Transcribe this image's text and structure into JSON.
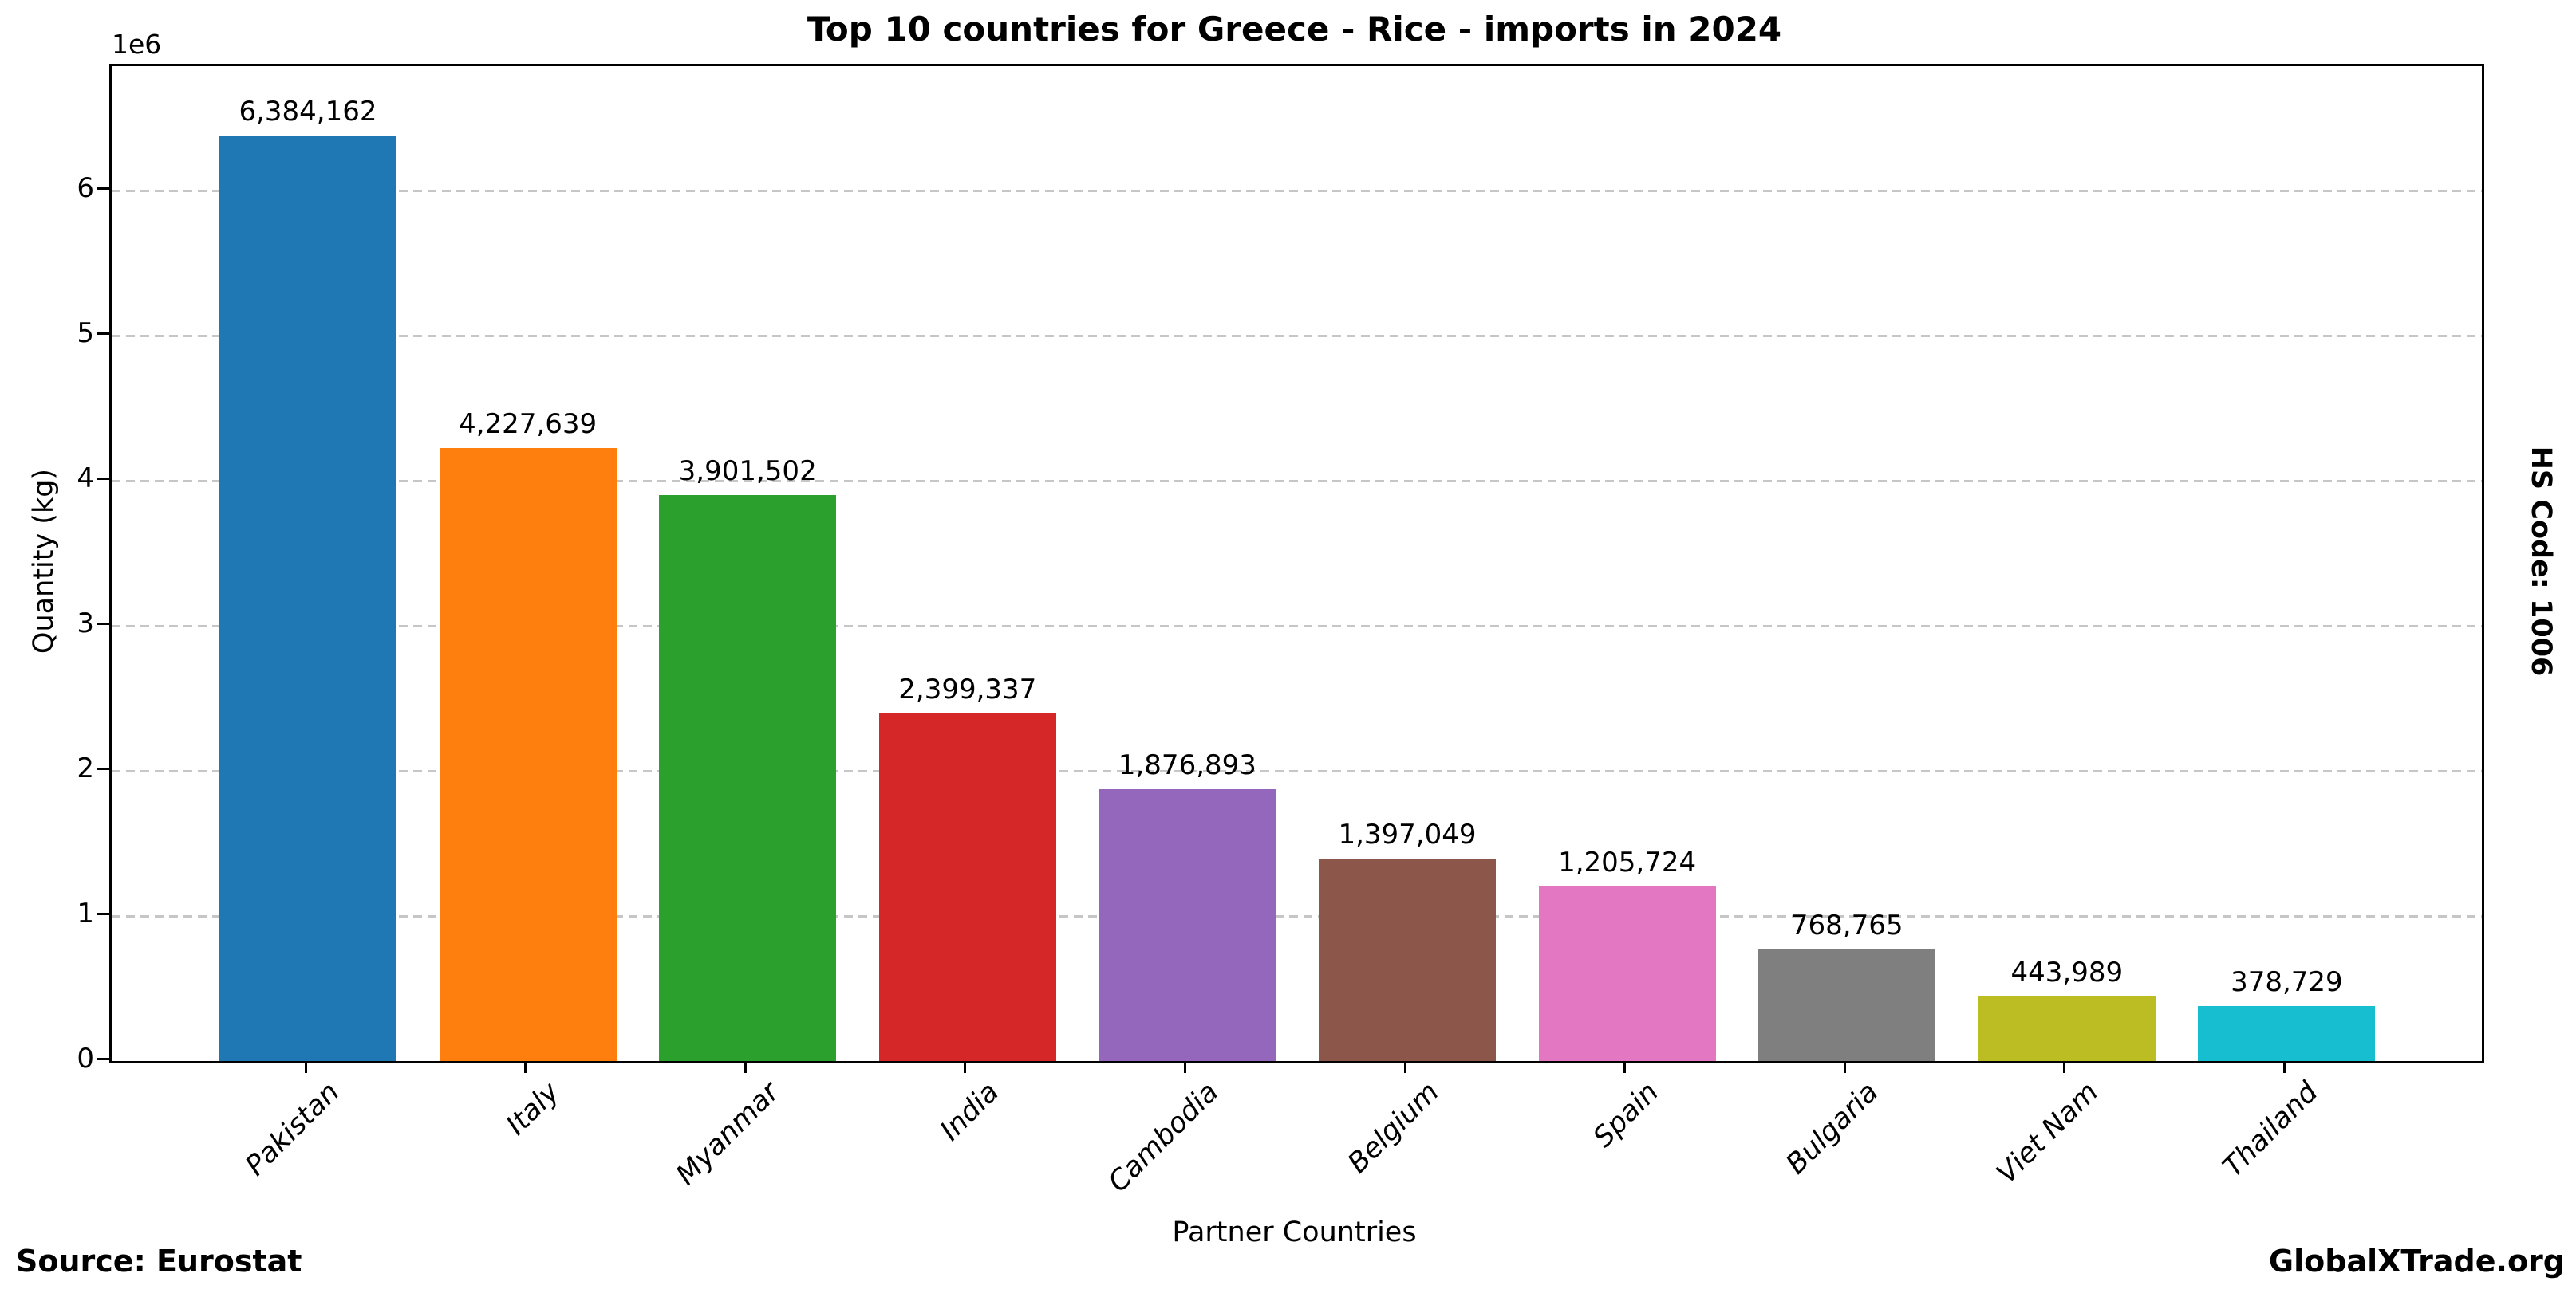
{
  "chart_data": {
    "type": "bar",
    "title": "Top 10 countries for Greece - Rice - imports in 2024",
    "xlabel": "Partner Countries",
    "ylabel": "Quantity (kg)",
    "y_offset_text": "1e6",
    "categories": [
      "Pakistan",
      "Italy",
      "Myanmar",
      "India",
      "Cambodia",
      "Belgium",
      "Spain",
      "Bulgaria",
      "Viet Nam",
      "Thailand"
    ],
    "values": [
      6384162,
      4227639,
      3901502,
      2399337,
      1876893,
      1397049,
      1205724,
      768765,
      443989,
      378729
    ],
    "value_labels": [
      "6,384,162",
      "4,227,639",
      "3,901,502",
      "2,399,337",
      "1,876,893",
      "1,397,049",
      "1,205,724",
      "768,765",
      "443,989",
      "378,729"
    ],
    "bar_colors": [
      "#1f77b4",
      "#ff7f0e",
      "#2ca02c",
      "#d62728",
      "#9467bd",
      "#8c564b",
      "#e377c2",
      "#7f7f7f",
      "#bcbd22",
      "#17becf"
    ],
    "y_ticks": [
      0,
      1,
      2,
      3,
      4,
      5,
      6
    ],
    "y_tick_labels": [
      "0",
      "1",
      "2",
      "3",
      "4",
      "5",
      "6"
    ],
    "ylim": [
      0,
      6860000
    ],
    "grid": "horizontal-dashed",
    "grid_color": "#c6c6c6",
    "legend": "none",
    "background_color": "#ffffff",
    "text_color": "#000000"
  },
  "annotations": {
    "source": "Source: Eurostat",
    "brand": "GlobalXTrade.org",
    "hs_code": "HS Code: 1006"
  }
}
